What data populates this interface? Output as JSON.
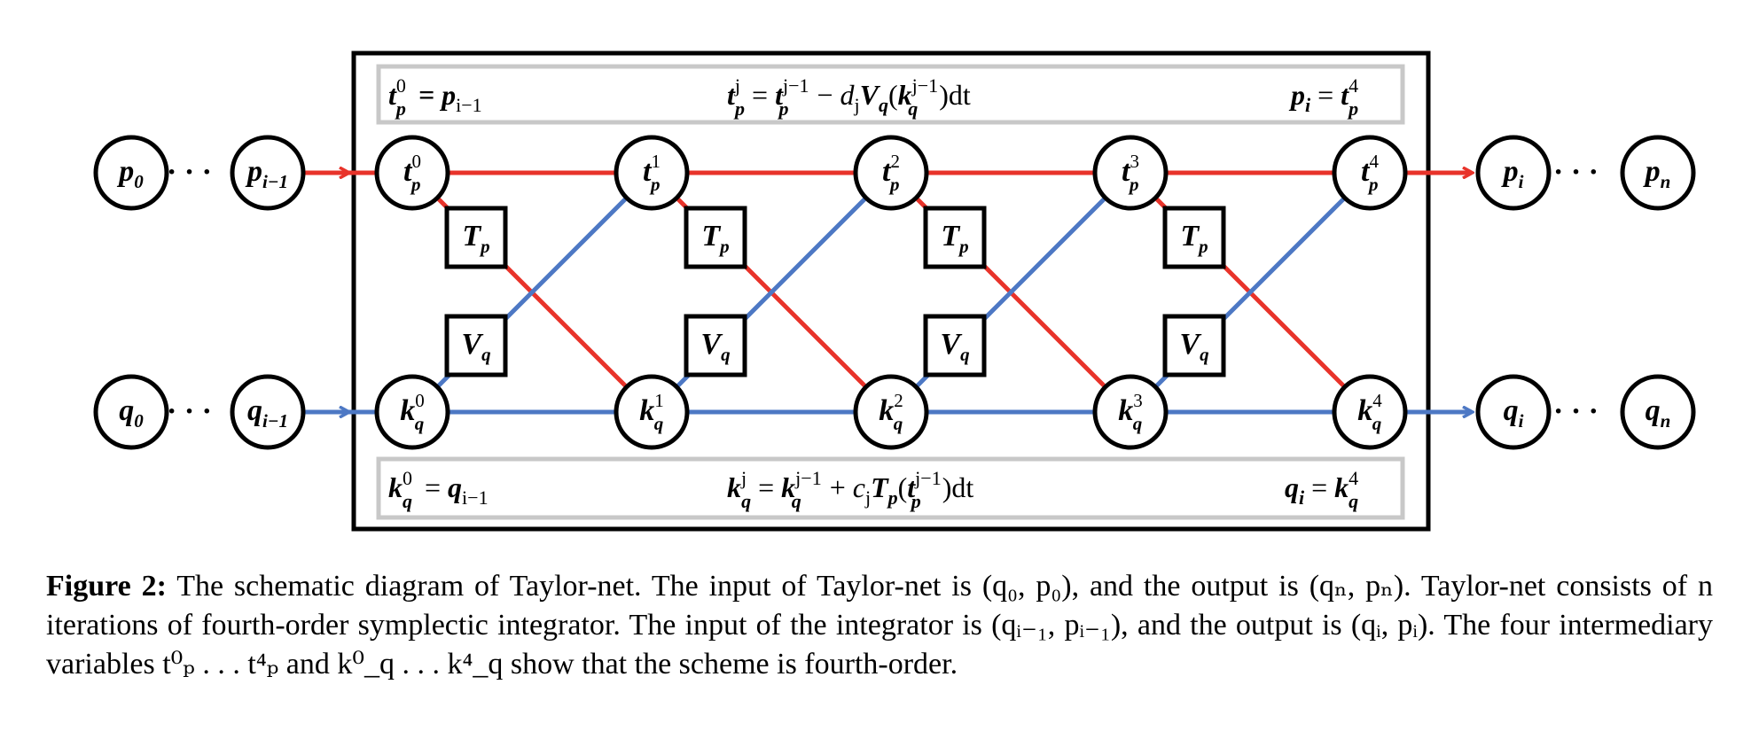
{
  "diagram": {
    "top_box": {
      "left": {
        "base": "t",
        "sub": "p",
        "sup": "0",
        "rhs": "= p",
        "rhs_sub": "i−1"
      },
      "center": "t_p^j = t_p^{j−1} − d_j V_q(k_q^{j−1})dt",
      "right": {
        "lhs": "p",
        "lhs_sub": "i",
        "rhs": "= t",
        "rhs_sub": "p",
        "rhs_sup": "4"
      }
    },
    "bottom_box": {
      "left": {
        "base": "k",
        "sub": "q",
        "sup": "0",
        "rhs": "= q",
        "rhs_sub": "i−1"
      },
      "center": "k_q^j = k_q^{j−1} + c_j T_p(t_p^{j−1})dt",
      "right": {
        "lhs": "q",
        "lhs_sub": "i",
        "rhs": "= k",
        "rhs_sub": "q",
        "rhs_sup": "4"
      }
    },
    "top_nodes": [
      {
        "base": "t",
        "sub": "p",
        "sup": "0"
      },
      {
        "base": "t",
        "sub": "p",
        "sup": "1"
      },
      {
        "base": "t",
        "sub": "p",
        "sup": "2"
      },
      {
        "base": "t",
        "sub": "p",
        "sup": "3"
      },
      {
        "base": "t",
        "sub": "p",
        "sup": "4"
      }
    ],
    "bottom_nodes": [
      {
        "base": "k",
        "sub": "q",
        "sup": "0"
      },
      {
        "base": "k",
        "sub": "q",
        "sup": "1"
      },
      {
        "base": "k",
        "sub": "q",
        "sup": "2"
      },
      {
        "base": "k",
        "sub": "q",
        "sup": "3"
      },
      {
        "base": "k",
        "sub": "q",
        "sup": "4"
      }
    ],
    "outer_top": [
      {
        "base": "p",
        "sub": "0"
      },
      {
        "base": "p",
        "sub": "i−1"
      },
      {
        "base": "p",
        "sub": "i"
      },
      {
        "base": "p",
        "sub": "n"
      }
    ],
    "outer_bottom": [
      {
        "base": "q",
        "sub": "0"
      },
      {
        "base": "q",
        "sub": "i−1"
      },
      {
        "base": "q",
        "sub": "i"
      },
      {
        "base": "q",
        "sub": "n"
      }
    ],
    "ellipsis": "· · ·",
    "tp_box": {
      "base": "T",
      "sub": "p"
    },
    "vq_box": {
      "base": "V",
      "sub": "q"
    },
    "colors": {
      "red": "#e8332a",
      "blue": "#4d78c4",
      "frame": "#000000",
      "box_border": "#c8c8c8"
    }
  },
  "caption": {
    "label": "Figure 2:",
    "text": "The schematic diagram of Taylor-net. The input of Taylor-net is (q₀, p₀), and the output is (qₙ, pₙ). Taylor-net consists of n iterations of fourth-order symplectic integrator. The input of the integrator is (qᵢ₋₁, pᵢ₋₁), and the output is (qᵢ, pᵢ). The four intermediary variables t⁰ₚ . . . t⁴ₚ and k⁰_q . . . k⁴_q show that the scheme is fourth-order."
  }
}
